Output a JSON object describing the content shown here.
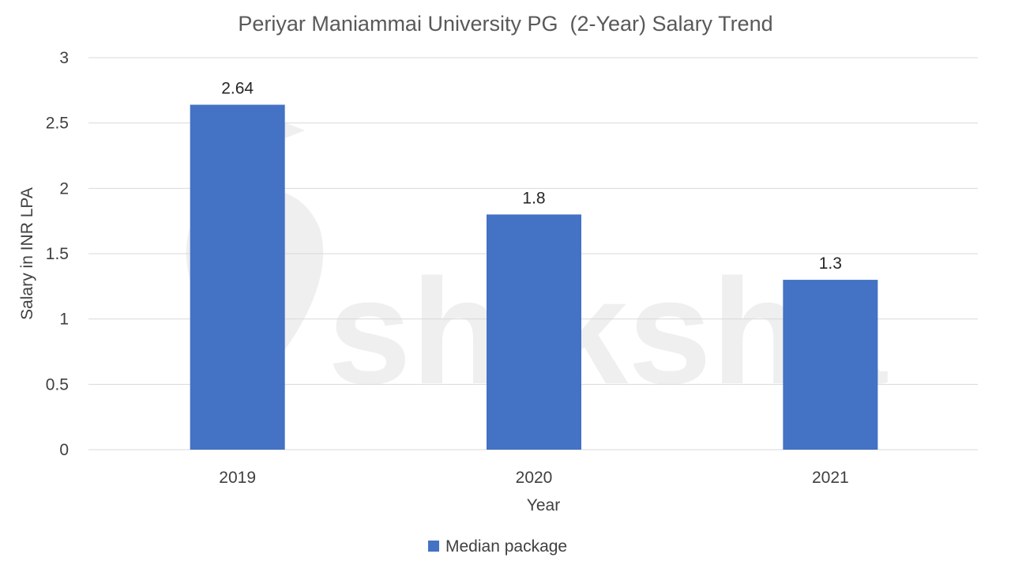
{
  "chart_data": {
    "type": "bar",
    "title": "Periyar Maniammai University PG  (2-Year) Salary Trend",
    "xlabel": "Year",
    "ylabel": "Salary in INR LPA",
    "categories": [
      "2019",
      "2020",
      "2021"
    ],
    "series": [
      {
        "name": "Median package",
        "values": [
          2.64,
          1.8,
          1.3
        ],
        "color": "#4472c4"
      }
    ],
    "data_labels": [
      "2.64",
      "1.8",
      "1.3"
    ],
    "ylim": [
      0,
      3
    ],
    "yticks": [
      "0",
      "0.5",
      "1",
      "1.5",
      "2",
      "2.5",
      "3"
    ],
    "grid": true,
    "legend_position": "bottom"
  },
  "watermark": {
    "text": "shiksha"
  }
}
